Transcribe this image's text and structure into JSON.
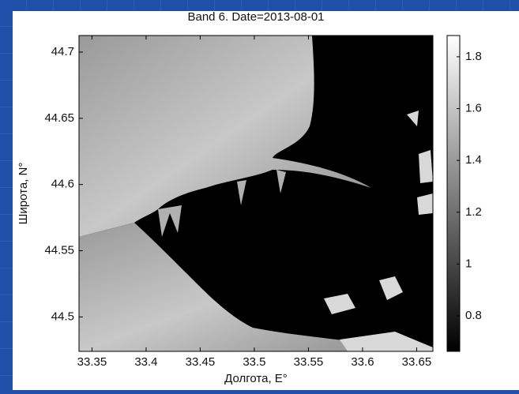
{
  "chart_data": {
    "type": "image",
    "title": "Band 6. Date=2013-08-01",
    "xlabel": "Долгота, E°",
    "ylabel": "Широта, N°",
    "xlim": [
      33.338,
      33.665
    ],
    "xticks": [
      33.35,
      33.4,
      33.45,
      33.5,
      33.55,
      33.6,
      33.65
    ],
    "ylim": [
      44.474,
      44.7125
    ],
    "yticks": [
      44.5,
      44.55,
      44.6,
      44.65,
      44.7
    ],
    "colorbar": {
      "lim": [
        0.663,
        1.882
      ],
      "ticks": [
        0.8,
        1,
        1.2,
        1.4,
        1.6,
        1.8
      ]
    }
  }
}
